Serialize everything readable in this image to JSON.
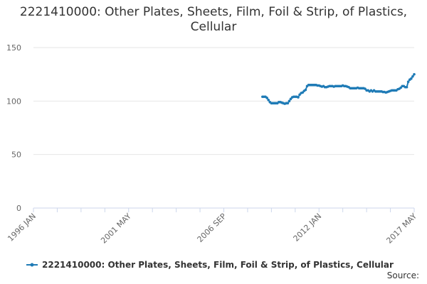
{
  "chart_data": {
    "type": "line",
    "title": "2221410000: Other Plates, Sheets, Film, Foil & Strip, of Plastics, Cellular",
    "source": "Source:",
    "xlim": [
      "1996 JAN",
      "2017 MAY"
    ],
    "xticks": [
      "1996 JAN",
      "2001 MAY",
      "2006 SEP",
      "2012 JAN",
      "2017 MAY"
    ],
    "ylim": [
      0,
      150
    ],
    "yticks": [
      0,
      50,
      100,
      150
    ],
    "grid": true,
    "legend": "bottom",
    "x": [
      "2008 NOV",
      "2008 DEC",
      "2009 JAN",
      "2009 FEB",
      "2009 MAR",
      "2009 APR",
      "2009 MAY",
      "2009 JUN",
      "2009 JUL",
      "2009 AUG",
      "2009 SEP",
      "2009 OCT",
      "2009 NOV",
      "2009 DEC",
      "2010 JAN",
      "2010 FEB",
      "2010 MAR",
      "2010 APR",
      "2010 MAY",
      "2010 JUN",
      "2010 JUL",
      "2010 AUG",
      "2010 SEP",
      "2010 OCT",
      "2010 NOV",
      "2010 DEC",
      "2011 JAN",
      "2011 FEB",
      "2011 MAR",
      "2011 APR",
      "2011 MAY",
      "2011 JUN",
      "2011 JUL",
      "2011 AUG",
      "2011 SEP",
      "2011 OCT",
      "2011 NOV",
      "2011 DEC",
      "2012 JAN",
      "2012 FEB",
      "2012 MAR",
      "2012 APR",
      "2012 MAY",
      "2012 JUN",
      "2012 JUL",
      "2012 AUG",
      "2012 SEP",
      "2012 OCT",
      "2012 NOV",
      "2012 DEC",
      "2013 JAN",
      "2013 FEB",
      "2013 MAR",
      "2013 APR",
      "2013 MAY",
      "2013 JUN",
      "2013 JUL",
      "2013 AUG",
      "2013 SEP",
      "2013 OCT",
      "2013 NOV",
      "2013 DEC",
      "2014 JAN",
      "2014 FEB",
      "2014 MAR",
      "2014 APR",
      "2014 MAY",
      "2014 JUN",
      "2014 JUL",
      "2014 AUG",
      "2014 SEP",
      "2014 OCT",
      "2014 NOV",
      "2014 DEC",
      "2015 JAN",
      "2015 FEB",
      "2015 MAR",
      "2015 APR",
      "2015 MAY",
      "2015 JUN",
      "2015 JUL",
      "2015 AUG",
      "2015 SEP",
      "2015 OCT",
      "2015 NOV",
      "2015 DEC",
      "2016 JAN",
      "2016 FEB",
      "2016 MAR",
      "2016 APR",
      "2016 MAY",
      "2016 JUN",
      "2016 JUL",
      "2016 AUG",
      "2016 SEP",
      "2016 OCT",
      "2016 NOV",
      "2016 DEC",
      "2017 JAN",
      "2017 FEB",
      "2017 MAR",
      "2017 APR",
      "2017 MAY"
    ],
    "series": [
      {
        "name": "2221410000: Other Plates, Sheets, Film, Foil & Strip, of Plastics, Cellular",
        "color": "#1f7bb6",
        "values": [
          104,
          104,
          104,
          103,
          101,
          99,
          98,
          98,
          98,
          98,
          98,
          99,
          99,
          98.5,
          98,
          97.5,
          98,
          98,
          100,
          102,
          103.5,
          104,
          104,
          104,
          103.5,
          106,
          107.5,
          108,
          109.5,
          110.5,
          114,
          115,
          115,
          115,
          115,
          115,
          115,
          114.5,
          114.5,
          114,
          113.5,
          114,
          113,
          113,
          113.5,
          114,
          114,
          114,
          113.5,
          114,
          114,
          114,
          114,
          114,
          114.5,
          114,
          114,
          113.5,
          113,
          112,
          112,
          112,
          112,
          112,
          112.5,
          112,
          112,
          112,
          112,
          111.5,
          110,
          110,
          109,
          110,
          109,
          110,
          109,
          109,
          109,
          109,
          109,
          108.5,
          108.5,
          108,
          108.5,
          109,
          109.5,
          110,
          110,
          110,
          110,
          111,
          111.5,
          112.5,
          114,
          114,
          113,
          113,
          118,
          120,
          121,
          123,
          125
        ]
      }
    ]
  }
}
